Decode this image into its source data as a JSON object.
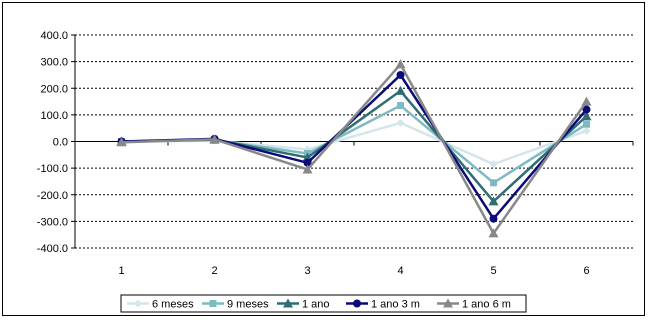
{
  "chart_data": {
    "type": "line",
    "categories": [
      "1",
      "2",
      "3",
      "4",
      "5",
      "6"
    ],
    "ylim": [
      -400,
      400
    ],
    "y_ticks": [
      "400.0",
      "300.0",
      "200.0",
      "100.0",
      "0.0",
      "-100.0",
      "-200.0",
      "-300.0",
      "-400.0"
    ],
    "y_tick_values": [
      400,
      300,
      200,
      100,
      0,
      -100,
      -200,
      -300,
      -400
    ],
    "grid": "horizontal dashed",
    "legend_position": "bottom",
    "series": [
      {
        "name": "6 meses",
        "color": "#d4e6ea",
        "marker": "diamond",
        "values": [
          0,
          3,
          -30,
          70,
          -85,
          40
        ]
      },
      {
        "name": "9 meses",
        "color": "#7fb9c4",
        "marker": "square",
        "values": [
          0,
          5,
          -45,
          135,
          -155,
          65
        ]
      },
      {
        "name": "1 ano",
        "color": "#2e6e72",
        "marker": "triangle",
        "values": [
          0,
          7,
          -60,
          190,
          -225,
          95
        ]
      },
      {
        "name": "1 ano 3 m",
        "color": "#0a0a7a",
        "marker": "circle",
        "values": [
          0,
          10,
          -80,
          250,
          -290,
          120
        ]
      },
      {
        "name": "1 ano 6 m",
        "color": "#888888",
        "marker": "triangle",
        "values": [
          -3,
          8,
          -105,
          290,
          -345,
          150
        ]
      }
    ]
  }
}
